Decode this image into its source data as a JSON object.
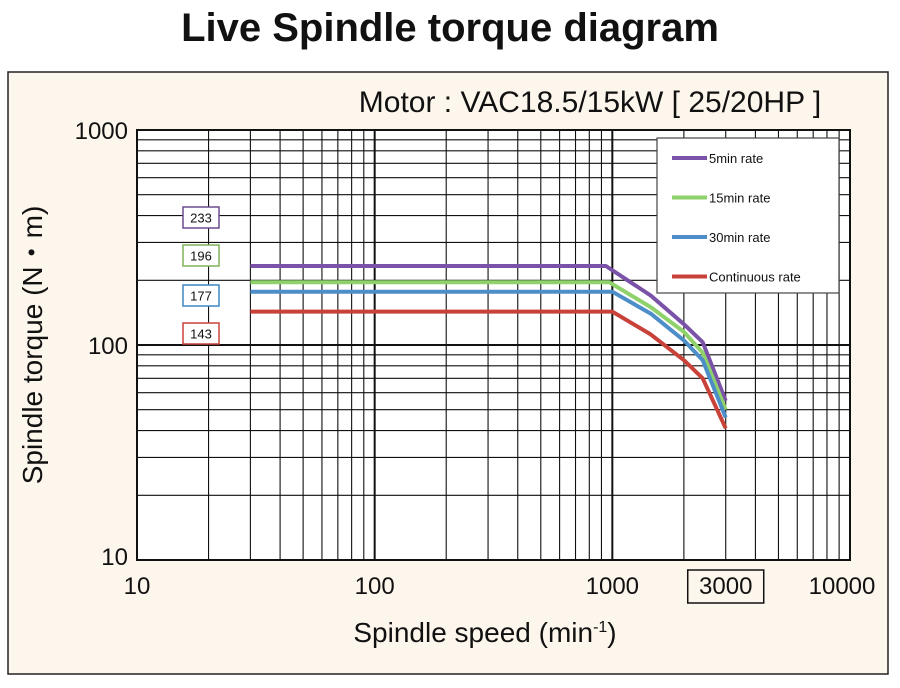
{
  "title": "Live Spindle torque diagram",
  "chart_data": {
    "type": "line",
    "subtitle": "Motor : VAC18.5/15kW  [ 25/20HP ]",
    "xlabel": "Spindle speed (min",
    "xlabel_sup": "-1",
    "xlabel_end": ")",
    "ylabel": "Spindle torque (N・m)",
    "x_scale": "log",
    "y_scale": "log",
    "xlim": [
      10,
      10000
    ],
    "ylim": [
      10,
      1000
    ],
    "x_ticks": [
      "10",
      "100",
      "1000",
      "3000",
      "10000"
    ],
    "y_ticks": [
      "1000",
      "100",
      "10"
    ],
    "highlight_x_tick": "3000",
    "grid": true,
    "legend_position": "top-right",
    "series": [
      {
        "name": "5min rate",
        "color": "#7a52a8",
        "points": [
          [
            30,
            233
          ],
          [
            940,
            233
          ],
          [
            1450,
            170
          ],
          [
            2000,
            125
          ],
          [
            2400,
            103
          ],
          [
            3000,
            55
          ]
        ]
      },
      {
        "name": "15min rate",
        "color": "#8fd16a",
        "points": [
          [
            30,
            196
          ],
          [
            970,
            196
          ],
          [
            1450,
            150
          ],
          [
            2000,
            115
          ],
          [
            2400,
            92
          ],
          [
            3000,
            50
          ]
        ]
      },
      {
        "name": "30min rate",
        "color": "#4d8ec9",
        "points": [
          [
            30,
            177
          ],
          [
            1000,
            177
          ],
          [
            1450,
            140
          ],
          [
            2000,
            105
          ],
          [
            2400,
            85
          ],
          [
            3000,
            46
          ]
        ]
      },
      {
        "name": "Continuous rate",
        "color": "#c8423a",
        "points": [
          [
            30,
            143
          ],
          [
            1000,
            143
          ],
          [
            1450,
            112
          ],
          [
            2000,
            85
          ],
          [
            2400,
            70
          ],
          [
            3000,
            41
          ]
        ]
      }
    ],
    "value_labels": [
      {
        "text": "233",
        "color": "#6b4c8f"
      },
      {
        "text": "196",
        "color": "#7fb35a"
      },
      {
        "text": "177",
        "color": "#3f86c4"
      },
      {
        "text": "143",
        "color": "#c8423a"
      }
    ]
  }
}
